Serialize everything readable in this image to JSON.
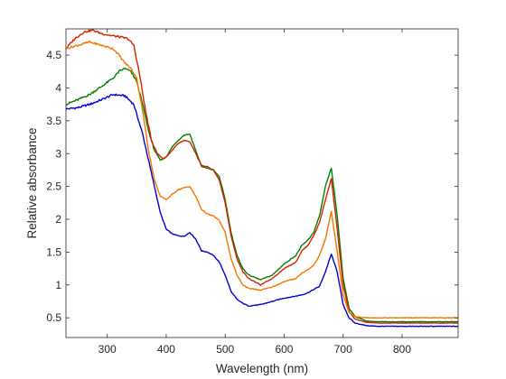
{
  "chart_data": {
    "type": "line",
    "title": "",
    "xlabel": "Wavelength (nm)",
    "ylabel": "Relative absorbance",
    "xlim": [
      230,
      895
    ],
    "ylim": [
      0.2,
      4.9
    ],
    "xticks": [
      300,
      400,
      500,
      600,
      700,
      800
    ],
    "xtick_labels": [
      "300",
      "400",
      "500",
      "600",
      "700",
      "800"
    ],
    "yticks": [
      0.5,
      1,
      1.5,
      2,
      2.5,
      3,
      3.5,
      4,
      4.5
    ],
    "ytick_labels": [
      "0.5",
      "1",
      "1.5",
      "2",
      "2.5",
      "3",
      "3.5",
      "4",
      "4.5"
    ],
    "grid": false,
    "legend": "none",
    "series": [
      {
        "color": "#0000d6",
        "x": [
          230,
          250,
          270,
          290,
          310,
          330,
          345,
          360,
          375,
          390,
          400,
          410,
          420,
          430,
          440,
          450,
          460,
          470,
          480,
          490,
          500,
          510,
          520,
          530,
          540,
          560,
          580,
          600,
          620,
          630,
          640,
          650,
          660,
          670,
          680,
          690,
          700,
          710,
          720,
          740,
          760,
          800,
          850,
          895
        ],
        "y": [
          3.68,
          3.7,
          3.75,
          3.82,
          3.9,
          3.88,
          3.75,
          3.3,
          2.7,
          2.1,
          1.85,
          1.78,
          1.75,
          1.74,
          1.8,
          1.7,
          1.52,
          1.5,
          1.45,
          1.35,
          1.15,
          0.9,
          0.78,
          0.72,
          0.68,
          0.7,
          0.75,
          0.8,
          0.83,
          0.85,
          0.88,
          0.93,
          0.98,
          1.2,
          1.47,
          1.2,
          0.7,
          0.5,
          0.42,
          0.38,
          0.37,
          0.37,
          0.37,
          0.37
        ]
      },
      {
        "color": "#008000",
        "x": [
          230,
          250,
          270,
          290,
          310,
          320,
          330,
          340,
          350,
          360,
          370,
          380,
          390,
          400,
          410,
          420,
          430,
          440,
          450,
          460,
          470,
          480,
          490,
          500,
          510,
          520,
          530,
          540,
          560,
          580,
          600,
          620,
          630,
          640,
          650,
          660,
          670,
          680,
          690,
          700,
          710,
          720,
          740,
          760,
          800,
          850,
          895
        ],
        "y": [
          3.75,
          3.82,
          3.9,
          4.02,
          4.15,
          4.25,
          4.3,
          4.25,
          4.1,
          3.75,
          3.35,
          3.05,
          2.9,
          2.95,
          3.1,
          3.2,
          3.28,
          3.3,
          3.05,
          2.8,
          2.78,
          2.75,
          2.65,
          2.3,
          1.8,
          1.45,
          1.25,
          1.15,
          1.08,
          1.15,
          1.32,
          1.45,
          1.6,
          1.68,
          1.8,
          2.05,
          2.5,
          2.78,
          2.05,
          1.1,
          0.65,
          0.52,
          0.45,
          0.44,
          0.44,
          0.44,
          0.44
        ]
      },
      {
        "color": "#d62000",
        "x": [
          230,
          245,
          260,
          275,
          290,
          305,
          320,
          335,
          345,
          355,
          365,
          375,
          385,
          395,
          400,
          410,
          420,
          430,
          440,
          450,
          460,
          470,
          480,
          490,
          500,
          510,
          520,
          530,
          540,
          560,
          580,
          600,
          620,
          630,
          640,
          650,
          660,
          670,
          680,
          690,
          700,
          710,
          720,
          740,
          760,
          800,
          850,
          895
        ],
        "y": [
          4.6,
          4.75,
          4.85,
          4.88,
          4.83,
          4.8,
          4.78,
          4.75,
          4.65,
          4.2,
          3.65,
          3.2,
          3.0,
          2.92,
          2.95,
          3.05,
          3.15,
          3.2,
          3.18,
          3.0,
          2.82,
          2.8,
          2.75,
          2.6,
          2.25,
          1.75,
          1.4,
          1.2,
          1.1,
          1.0,
          1.1,
          1.25,
          1.35,
          1.52,
          1.6,
          1.75,
          1.95,
          2.3,
          2.62,
          1.85,
          1.0,
          0.6,
          0.48,
          0.43,
          0.42,
          0.42,
          0.42,
          0.42
        ]
      },
      {
        "color": "#f07800",
        "x": [
          230,
          250,
          270,
          290,
          310,
          320,
          330,
          340,
          350,
          360,
          370,
          380,
          390,
          400,
          410,
          420,
          430,
          440,
          450,
          460,
          470,
          480,
          490,
          500,
          510,
          520,
          530,
          540,
          560,
          580,
          600,
          620,
          630,
          640,
          650,
          660,
          670,
          680,
          690,
          700,
          710,
          720,
          740,
          760,
          800,
          850,
          895
        ],
        "y": [
          4.6,
          4.65,
          4.7,
          4.65,
          4.6,
          4.5,
          4.38,
          4.3,
          4.15,
          3.65,
          3.05,
          2.6,
          2.35,
          2.3,
          2.38,
          2.45,
          2.48,
          2.5,
          2.35,
          2.15,
          2.08,
          2.05,
          1.98,
          1.8,
          1.4,
          1.15,
          1.0,
          0.95,
          0.92,
          0.97,
          1.05,
          1.1,
          1.18,
          1.23,
          1.3,
          1.45,
          1.7,
          2.12,
          1.5,
          0.85,
          0.58,
          0.52,
          0.5,
          0.5,
          0.5,
          0.5,
          0.5
        ]
      }
    ]
  }
}
